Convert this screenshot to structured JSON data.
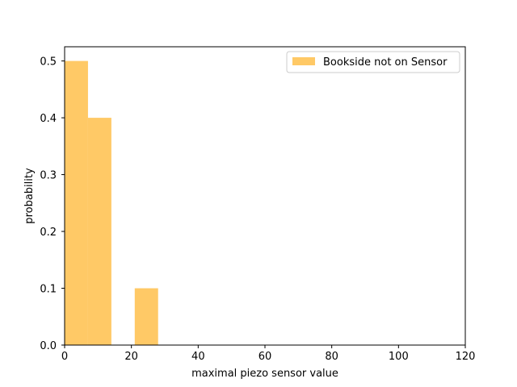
{
  "chart_data": {
    "type": "bar",
    "title": "",
    "xlabel": "maximal piezo sensor value",
    "ylabel": "probability",
    "xlim": [
      0,
      120
    ],
    "ylim": [
      0,
      0.525
    ],
    "x_ticks": [
      "0",
      "20",
      "40",
      "60",
      "80",
      "100",
      "120"
    ],
    "y_ticks": [
      "0.0",
      "0.1",
      "0.2",
      "0.3",
      "0.4",
      "0.5"
    ],
    "grid": false,
    "legend_position": "top-right",
    "series": [
      {
        "name": "Bookside not on Sensor",
        "color": "#ffc966",
        "bins": [
          {
            "x0": 0,
            "x1": 7,
            "value": 0.5
          },
          {
            "x0": 7,
            "x1": 14,
            "value": 0.4
          },
          {
            "x0": 14,
            "x1": 21,
            "value": 0.0
          },
          {
            "x0": 21,
            "x1": 28,
            "value": 0.1
          }
        ]
      }
    ]
  }
}
